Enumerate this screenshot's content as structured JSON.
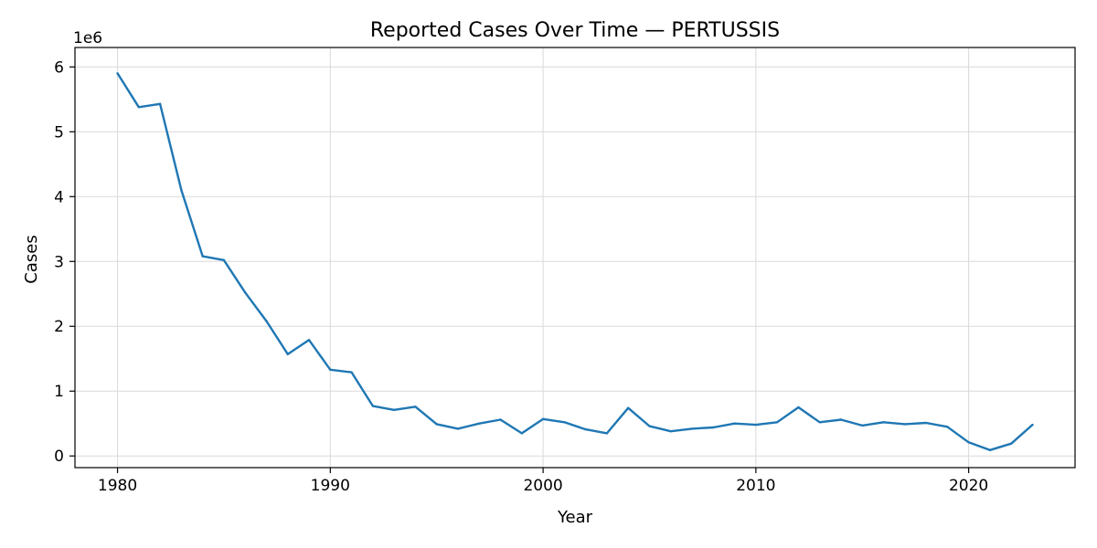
{
  "chart_data": {
    "type": "line",
    "title": "Reported Cases Over Time — PERTUSSIS",
    "xlabel": "Year",
    "ylabel": "Cases",
    "y_offset_label": "1e6",
    "xlim": [
      1978,
      2025
    ],
    "ylim": [
      -180000,
      6300000
    ],
    "x_ticks": [
      1980,
      1990,
      2000,
      2010,
      2020
    ],
    "y_ticks": [
      0,
      1,
      2,
      3,
      4,
      5,
      6
    ],
    "y_tick_scale": 1000000,
    "grid": true,
    "line_color": "#1f77b4",
    "series": [
      {
        "x": [
          1980,
          1981,
          1982,
          1983,
          1984,
          1985,
          1986,
          1987,
          1988,
          1989,
          1990,
          1991,
          1992,
          1993,
          1994,
          1995,
          1996,
          1997,
          1998,
          1999,
          2000,
          2001,
          2002,
          2003,
          2004,
          2005,
          2006,
          2007,
          2008,
          2009,
          2010,
          2011,
          2012,
          2013,
          2014,
          2015,
          2016,
          2017,
          2018,
          2019,
          2020,
          2021,
          2022,
          2023
        ],
        "values": [
          5900000,
          5380000,
          5430000,
          4100000,
          3080000,
          3020000,
          2520000,
          2080000,
          1570000,
          1790000,
          1330000,
          1290000,
          770000,
          710000,
          760000,
          490000,
          420000,
          500000,
          560000,
          350000,
          570000,
          520000,
          410000,
          350000,
          740000,
          460000,
          380000,
          420000,
          440000,
          500000,
          480000,
          520000,
          750000,
          520000,
          560000,
          470000,
          520000,
          490000,
          510000,
          450000,
          210000,
          90000,
          190000,
          480000
        ]
      }
    ]
  }
}
